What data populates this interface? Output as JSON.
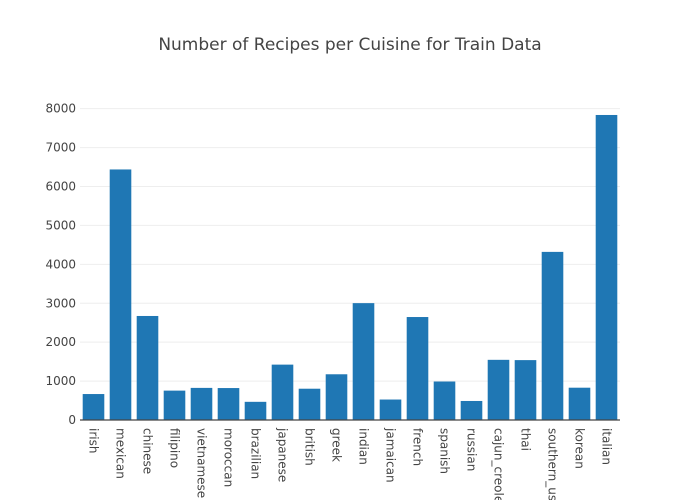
{
  "chart_data": {
    "type": "bar",
    "title": "Number of Recipes per Cuisine for Train Data",
    "xlabel": "",
    "ylabel": "",
    "categories": [
      "irish",
      "mexican",
      "chinese",
      "filipino",
      "vietnamese",
      "moroccan",
      "brazilian",
      "japanese",
      "british",
      "greek",
      "indian",
      "jamaican",
      "french",
      "spanish",
      "russian",
      "cajun_creole",
      "thai",
      "southern_us",
      "korean",
      "italian"
    ],
    "values": [
      667,
      6438,
      2673,
      755,
      825,
      821,
      467,
      1423,
      804,
      1175,
      3003,
      526,
      2646,
      989,
      489,
      1546,
      1539,
      4320,
      830,
      7838
    ],
    "ylim": [
      0,
      8300
    ],
    "yticks": [
      "0",
      "1000",
      "2000",
      "3000",
      "4000",
      "5000",
      "6000",
      "7000",
      "8000"
    ],
    "grid": true,
    "bar_color": "#1f77b4"
  }
}
